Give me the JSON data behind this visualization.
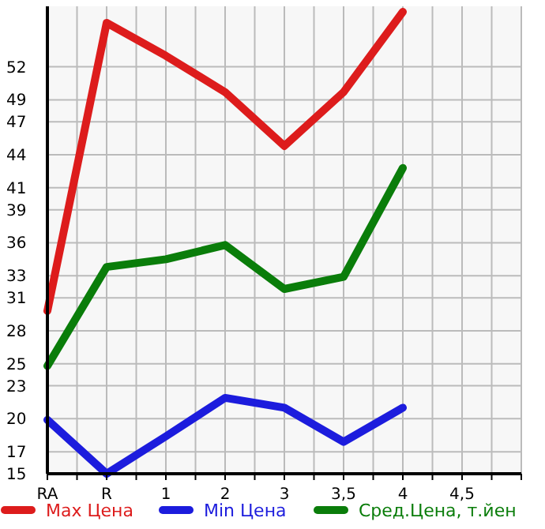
{
  "chart_data": {
    "type": "line",
    "categories": [
      "RA",
      "R",
      "1",
      "2",
      "3",
      "3,5",
      "4",
      "4,5"
    ],
    "ylim": [
      15,
      57.5
    ],
    "yticks": [
      15,
      17,
      20,
      23,
      25,
      28,
      31,
      33,
      36,
      39,
      41,
      44,
      47,
      49,
      52
    ],
    "grid": true,
    "legend": "bottom",
    "marker": "none",
    "line_style": "solid",
    "series": [
      {
        "name": "Max Цена",
        "color": "#dd1c1c",
        "values": [
          29.8,
          56,
          53,
          49.7,
          44.8,
          49.7,
          57,
          null
        ]
      },
      {
        "name": "Min Цена",
        "color": "#1c1cdd",
        "values": [
          19.9,
          15,
          18.4,
          21.9,
          21,
          17.9,
          21,
          null
        ]
      },
      {
        "name": "Сред.Цена, т.йен",
        "color": "#0a7d0a",
        "values": [
          24.8,
          33.8,
          34.5,
          35.8,
          31.8,
          32.9,
          42.8,
          null
        ]
      }
    ]
  }
}
